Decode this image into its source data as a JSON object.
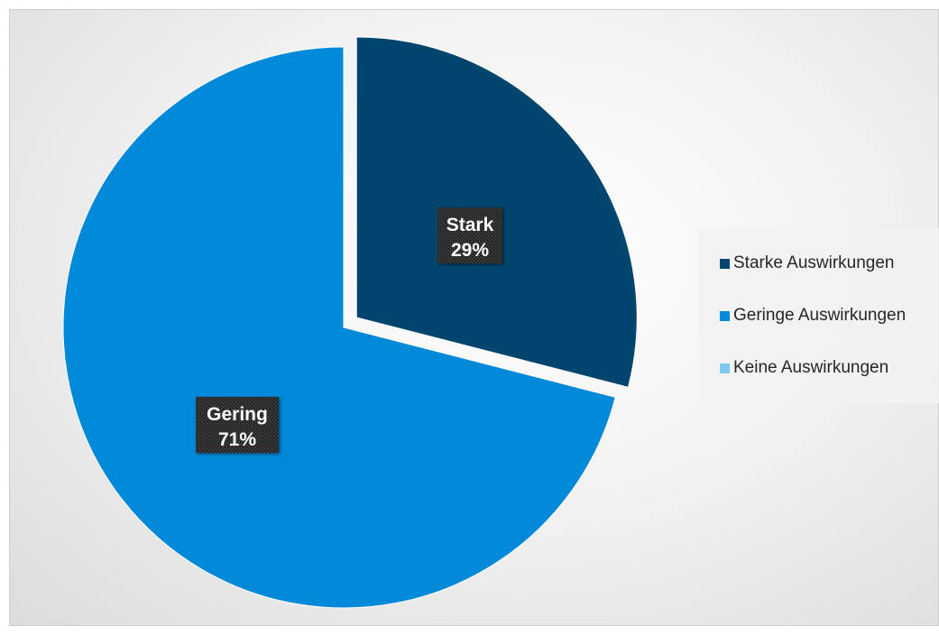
{
  "chart_data": {
    "type": "pie",
    "slices": [
      {
        "name": "Starke Auswirkungen",
        "short_label": "Stark",
        "value": 29,
        "value_label": "29%",
        "color": "#00456e",
        "exploded": true
      },
      {
        "name": "Geringe Auswirkungen",
        "short_label": "Gering",
        "value": 71,
        "value_label": "71%",
        "color": "#0088d9",
        "exploded": false
      },
      {
        "name": "Keine Auswirkungen",
        "short_label": "",
        "value": 0,
        "value_label": "",
        "color": "#7dc8f3",
        "exploded": false
      }
    ],
    "legend_position": "right"
  }
}
